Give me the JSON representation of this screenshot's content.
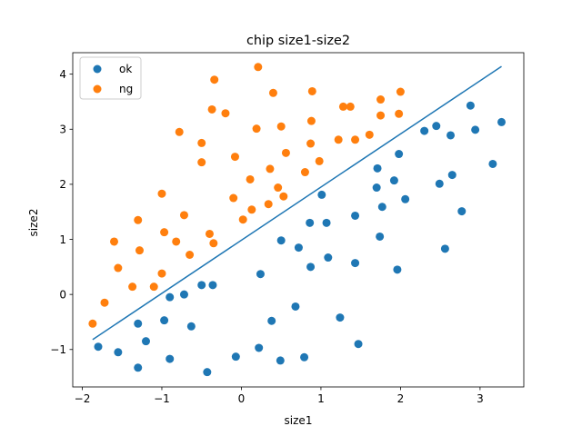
{
  "chart_data": {
    "type": "scatter",
    "title": "chip size1-size2",
    "xlabel": "size1",
    "ylabel": "size2",
    "xlim": [
      -2.12,
      3.55
    ],
    "ylim": [
      -1.68,
      4.39
    ],
    "xticks": [
      -2,
      -1,
      0,
      1,
      2,
      3
    ],
    "yticks": [
      -1,
      0,
      1,
      2,
      3,
      4
    ],
    "xtick_labels": [
      "−2",
      "−1",
      "0",
      "1",
      "2",
      "3"
    ],
    "ytick_labels": [
      "−1",
      "0",
      "1",
      "2",
      "3",
      "4"
    ],
    "legend_position": "upper-left",
    "series": [
      {
        "name": "ok",
        "color": "#1f77b4",
        "points": [
          [
            -1.8,
            -0.95
          ],
          [
            -1.55,
            -1.05
          ],
          [
            -1.3,
            -0.53
          ],
          [
            -1.3,
            -1.33
          ],
          [
            -1.2,
            -0.85
          ],
          [
            -0.97,
            -0.47
          ],
          [
            -0.9,
            -0.05
          ],
          [
            -0.9,
            -1.17
          ],
          [
            -0.72,
            0.0
          ],
          [
            -0.63,
            -0.58
          ],
          [
            -0.5,
            0.17
          ],
          [
            -0.43,
            -1.41
          ],
          [
            -0.36,
            0.17
          ],
          [
            -0.07,
            -1.13
          ],
          [
            0.22,
            -0.97
          ],
          [
            0.24,
            0.37
          ],
          [
            0.38,
            -0.48
          ],
          [
            0.49,
            -1.2
          ],
          [
            0.5,
            0.98
          ],
          [
            0.68,
            -0.22
          ],
          [
            0.72,
            0.85
          ],
          [
            0.79,
            -1.14
          ],
          [
            0.86,
            1.3
          ],
          [
            0.87,
            0.5
          ],
          [
            1.01,
            1.81
          ],
          [
            1.07,
            1.3
          ],
          [
            1.09,
            0.67
          ],
          [
            1.24,
            -0.42
          ],
          [
            1.43,
            1.43
          ],
          [
            1.43,
            0.57
          ],
          [
            1.47,
            -0.9
          ],
          [
            1.7,
            1.94
          ],
          [
            1.71,
            2.29
          ],
          [
            1.74,
            1.05
          ],
          [
            1.77,
            1.59
          ],
          [
            1.92,
            2.07
          ],
          [
            1.96,
            0.45
          ],
          [
            1.98,
            2.55
          ],
          [
            2.06,
            1.73
          ],
          [
            2.3,
            2.97
          ],
          [
            2.45,
            3.06
          ],
          [
            2.49,
            2.01
          ],
          [
            2.56,
            0.83
          ],
          [
            2.63,
            2.89
          ],
          [
            2.65,
            2.17
          ],
          [
            2.77,
            1.51
          ],
          [
            2.88,
            3.43
          ],
          [
            2.94,
            2.99
          ],
          [
            3.16,
            2.37
          ],
          [
            3.27,
            3.13
          ]
        ]
      },
      {
        "name": "ng",
        "color": "#ff7f0e",
        "points": [
          [
            -1.87,
            -0.53
          ],
          [
            -1.72,
            -0.15
          ],
          [
            -1.6,
            0.96
          ],
          [
            -1.55,
            0.48
          ],
          [
            -1.37,
            0.14
          ],
          [
            -1.3,
            1.35
          ],
          [
            -1.28,
            0.8
          ],
          [
            -1.1,
            0.14
          ],
          [
            -1.0,
            1.83
          ],
          [
            -1.0,
            0.38
          ],
          [
            -0.97,
            1.13
          ],
          [
            -0.82,
            0.96
          ],
          [
            -0.78,
            2.95
          ],
          [
            -0.72,
            1.44
          ],
          [
            -0.65,
            0.72
          ],
          [
            -0.5,
            2.75
          ],
          [
            -0.5,
            2.4
          ],
          [
            -0.4,
            1.1
          ],
          [
            -0.37,
            3.36
          ],
          [
            -0.35,
            0.93
          ],
          [
            -0.34,
            3.9
          ],
          [
            -0.2,
            3.29
          ],
          [
            -0.1,
            1.75
          ],
          [
            -0.08,
            2.5
          ],
          [
            0.02,
            1.36
          ],
          [
            0.11,
            2.09
          ],
          [
            0.13,
            1.54
          ],
          [
            0.19,
            3.01
          ],
          [
            0.21,
            4.13
          ],
          [
            0.34,
            1.64
          ],
          [
            0.36,
            2.28
          ],
          [
            0.4,
            3.66
          ],
          [
            0.46,
            1.94
          ],
          [
            0.5,
            3.05
          ],
          [
            0.53,
            1.78
          ],
          [
            0.56,
            2.57
          ],
          [
            0.8,
            2.22
          ],
          [
            0.87,
            2.74
          ],
          [
            0.88,
            3.15
          ],
          [
            0.89,
            3.69
          ],
          [
            0.98,
            2.42
          ],
          [
            1.22,
            2.81
          ],
          [
            1.28,
            3.41
          ],
          [
            1.37,
            3.41
          ],
          [
            1.43,
            2.81
          ],
          [
            1.61,
            2.9
          ],
          [
            1.75,
            3.25
          ],
          [
            1.75,
            3.54
          ],
          [
            1.98,
            3.28
          ],
          [
            2.0,
            3.68
          ]
        ]
      }
    ],
    "line": {
      "color": "#1f77b4",
      "x": [
        -1.87,
        3.27
      ],
      "y": [
        -0.82,
        4.14
      ]
    }
  }
}
